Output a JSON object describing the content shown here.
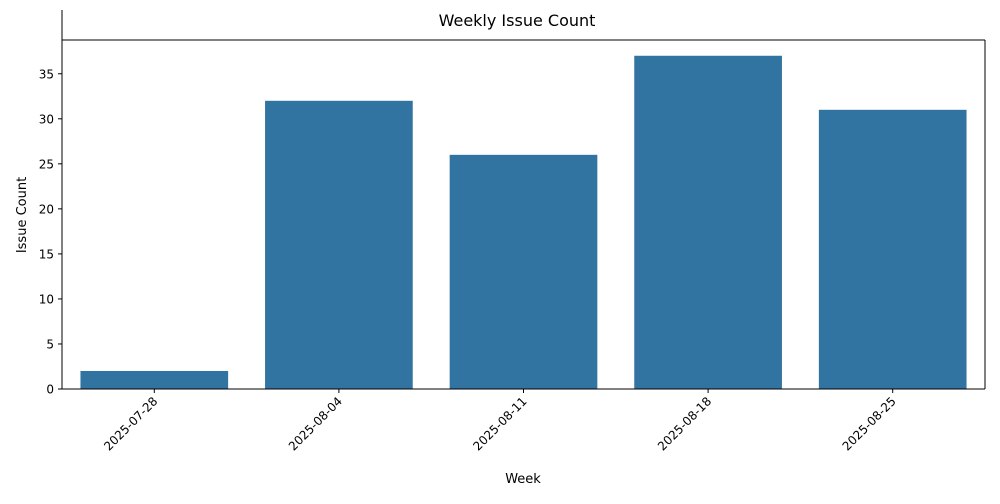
{
  "chart_data": {
    "type": "bar",
    "title": "Weekly Issue Count",
    "xlabel": "Week",
    "ylabel": "Issue Count",
    "categories": [
      "2025-07-28",
      "2025-08-04",
      "2025-08-11",
      "2025-08-18",
      "2025-08-25"
    ],
    "values": [
      2,
      32,
      26,
      37,
      31
    ],
    "ylim": [
      0,
      38.75
    ],
    "yticks": [
      0,
      5,
      10,
      15,
      20,
      25,
      30,
      35
    ],
    "grid": false,
    "legend": "none",
    "colors": {
      "bar": "#3274a1",
      "axis": "#000000",
      "background": "#ffffff"
    }
  }
}
